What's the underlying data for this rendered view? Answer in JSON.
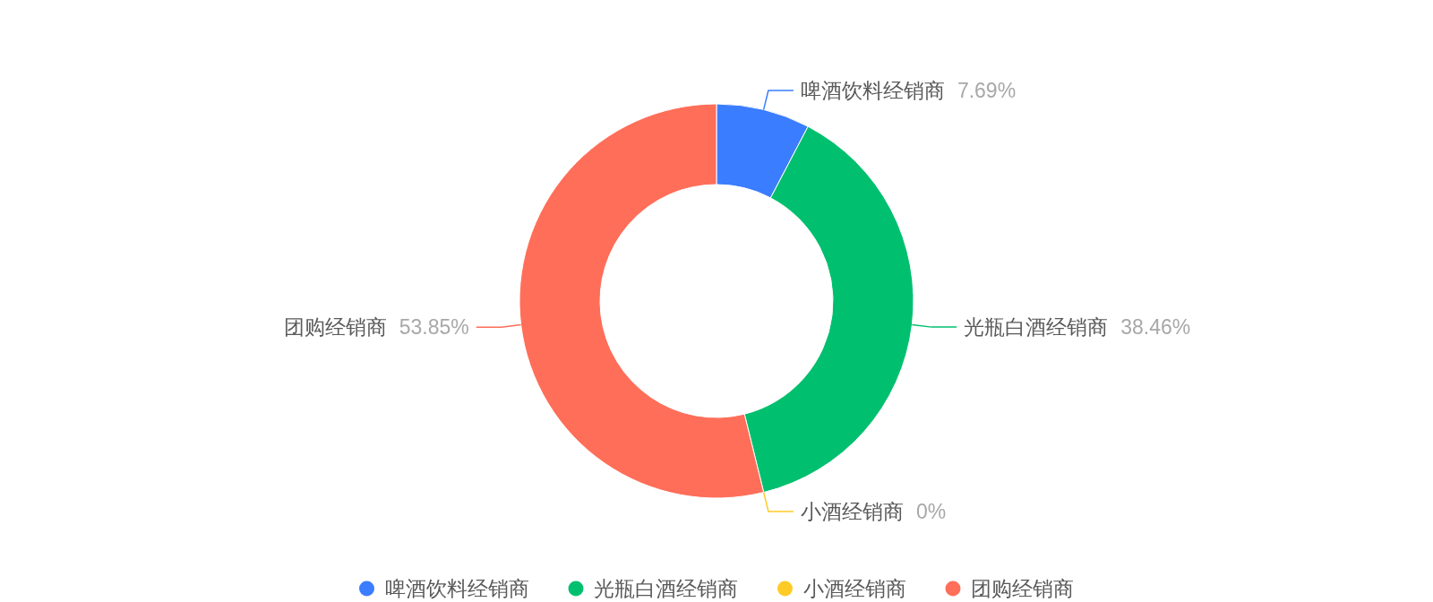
{
  "chart_data": {
    "type": "donut",
    "categories": [
      "啤酒饮料经销商",
      "光瓶白酒经销商",
      "小酒经销商",
      "团购经销商"
    ],
    "values": [
      7.69,
      38.46,
      0,
      53.85
    ],
    "colors": [
      "#3a7dff",
      "#00c06f",
      "#fecb26",
      "#ff6e59"
    ],
    "value_labels": [
      "7.69%",
      "38.46%",
      "0%",
      "53.85%"
    ],
    "legend": "bottom"
  }
}
